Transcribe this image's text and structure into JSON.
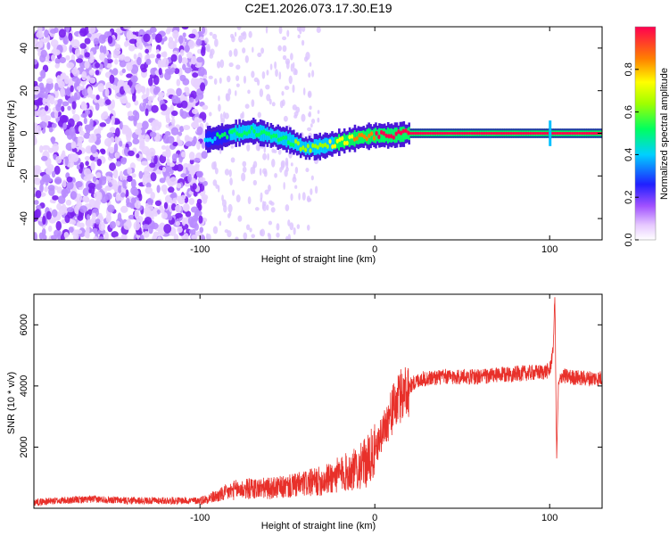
{
  "title": "C2E1.2026.073.17.30.E19",
  "chart_data": [
    {
      "type": "heatmap",
      "xlabel": "Height of straight line (km)",
      "ylabel": "Frequency (Hz)",
      "xlim": [
        -195,
        130
      ],
      "ylim": [
        -50,
        50
      ],
      "xticks": [
        -100,
        0,
        100
      ],
      "yticks": [
        -40,
        -20,
        0,
        20,
        40
      ],
      "xtick_labels": [
        "-100",
        "0",
        "100"
      ],
      "ytick_labels": [
        "-40",
        "-20",
        "0",
        "20",
        "40"
      ],
      "grid": false,
      "colormap": "rainbow",
      "colorbar": {
        "label": "Normalized spectral amplitude",
        "range": [
          0,
          1
        ],
        "ticks": [
          0.0,
          0.2,
          0.4,
          0.6,
          0.8
        ],
        "tick_labels": [
          "0.0",
          "0.2",
          "0.4",
          "0.6",
          "0.8"
        ]
      },
      "noise_floor_region_km": [
        -195,
        -97
      ],
      "signal_trace": {
        "x_km": [
          -97,
          -90,
          -80,
          -70,
          -60,
          -50,
          -40,
          -30,
          -20,
          -10,
          0,
          10,
          20,
          40,
          60,
          80,
          100,
          110,
          130
        ],
        "freq_hz": [
          -3,
          -2,
          0,
          1,
          -1,
          -3,
          -7,
          -6,
          -4,
          -2,
          -1,
          -1,
          0,
          0,
          0,
          0,
          0,
          0,
          0
        ],
        "peak_amplitude": [
          0.35,
          0.4,
          0.45,
          0.45,
          0.45,
          0.5,
          0.55,
          0.6,
          0.7,
          0.75,
          0.85,
          0.9,
          0.95,
          0.97,
          0.97,
          0.97,
          0.95,
          0.97,
          0.97
        ]
      }
    },
    {
      "type": "line",
      "xlabel": "Height of straight line (km)",
      "ylabel": "SNR (10 * v/v)",
      "xlim": [
        -195,
        130
      ],
      "ylim": [
        0,
        7000
      ],
      "xticks": [
        -100,
        0,
        100
      ],
      "yticks": [
        2000,
        4000,
        6000
      ],
      "xtick_labels": [
        "-100",
        "0",
        "100"
      ],
      "ytick_labels": [
        "2000",
        "4000",
        "6000"
      ],
      "grid": false,
      "color": "#e8302a",
      "series": [
        {
          "name": "SNR",
          "x": [
            -195,
            -180,
            -160,
            -140,
            -120,
            -100,
            -90,
            -80,
            -70,
            -60,
            -50,
            -40,
            -30,
            -20,
            -10,
            -5,
            0,
            5,
            10,
            15,
            20,
            25,
            30,
            40,
            60,
            80,
            95,
            100,
            102,
            103,
            104,
            105,
            107,
            110,
            120,
            130
          ],
          "values": [
            200,
            250,
            300,
            250,
            250,
            250,
            400,
            600,
            650,
            650,
            700,
            800,
            900,
            1100,
            1300,
            1500,
            1800,
            2600,
            3200,
            3700,
            4000,
            4200,
            4250,
            4300,
            4300,
            4400,
            4450,
            4500,
            5200,
            7000,
            1600,
            4000,
            4350,
            4300,
            4250,
            4250
          ]
        }
      ]
    }
  ]
}
